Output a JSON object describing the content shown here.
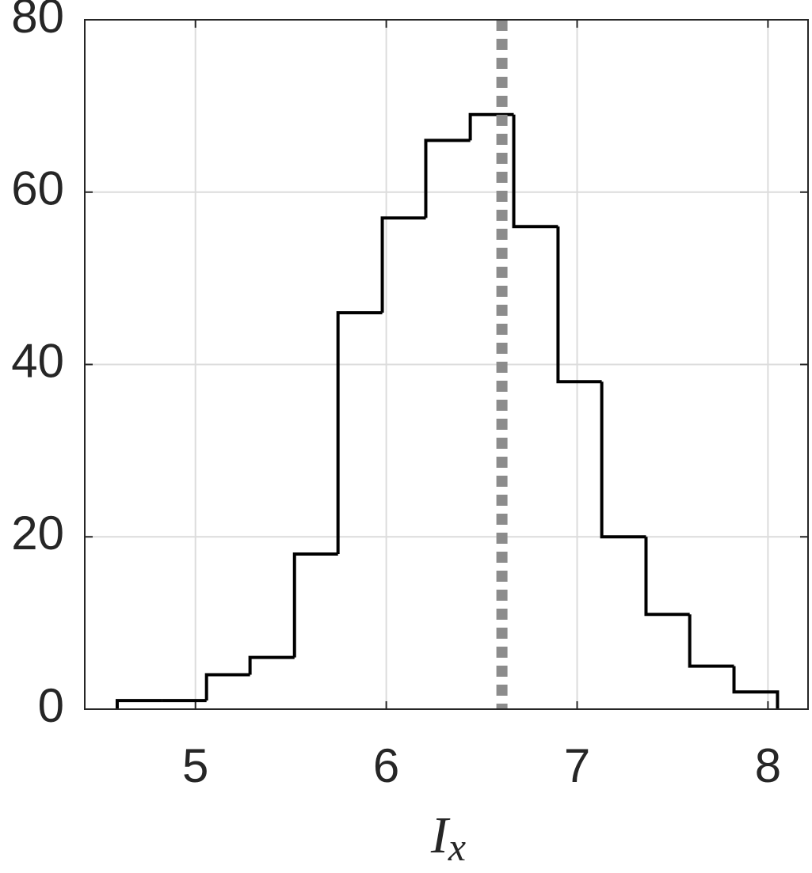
{
  "chart_data": {
    "type": "histogram",
    "bins": [
      4.59,
      4.825,
      5.058,
      5.286,
      5.519,
      5.747,
      5.979,
      6.207,
      6.44,
      6.668,
      6.9,
      7.129,
      7.361,
      7.59,
      7.822,
      8.05
    ],
    "values": [
      1,
      1,
      4,
      6,
      18,
      46,
      57,
      66,
      69,
      56,
      38,
      20,
      11,
      5,
      2
    ],
    "color": "#000000",
    "vline": 6.606,
    "vline_color": "#8c8c8c",
    "xlabel": "I",
    "xlabel_subscript": "x",
    "xlim": [
      4.42,
      8.21
    ],
    "xticks": [
      5,
      6,
      7,
      8
    ],
    "ylim": [
      0,
      80
    ],
    "yticks": [
      0,
      20,
      40,
      60,
      80
    ],
    "grid": true
  }
}
